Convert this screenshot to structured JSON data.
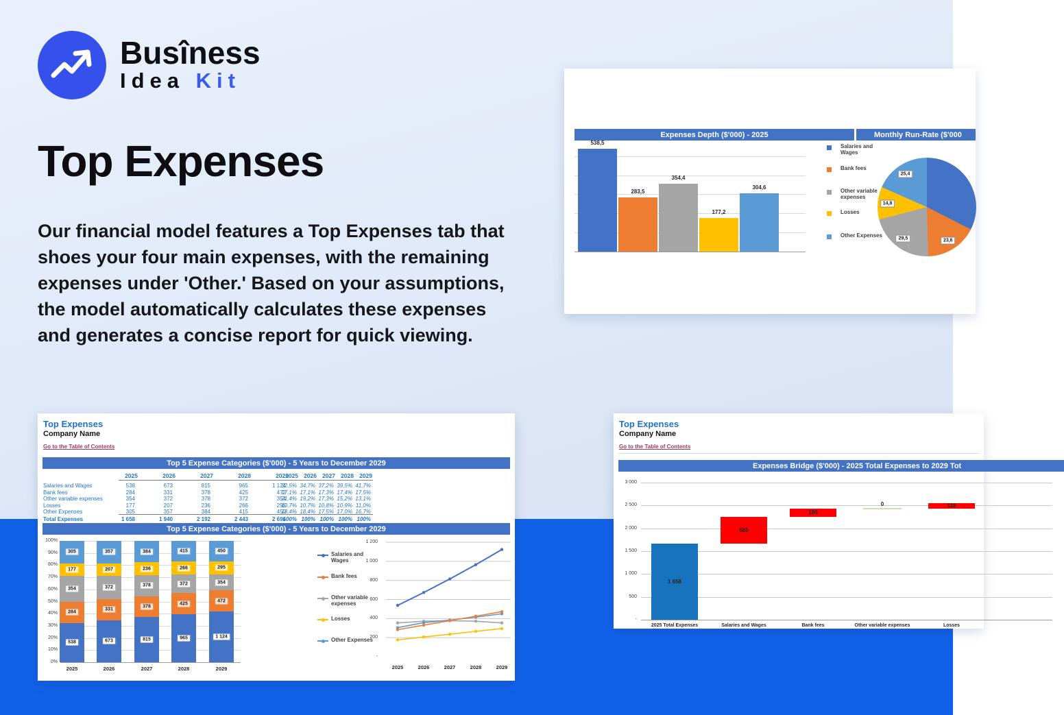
{
  "logo": {
    "brand_top": "Busîness",
    "brand_idea": "Idea",
    "brand_kit": "Kit"
  },
  "hero": {
    "title": "Top Expenses",
    "description": "Our financial model features a Top Expenses tab that shoes your four main expenses, with the remaining expenses under 'Other.' Based on your assumptions, the model automatically calculates these expenses and generates a concise report for quick viewing."
  },
  "sheet": {
    "title": "Top Expenses",
    "company": "Company Name",
    "link": "Go to the Table of Contents"
  },
  "cards": {
    "top_right": {
      "bar_header": "Expenses Depth ($'000) - 2025",
      "pie_header": "Monthly Run-Rate ($'000"
    },
    "bottom_left": {
      "section1_header": "Top 5 Expense Categories ($'000) - 5 Years to December 2029",
      "section2_header": "Top 5 Expense Categories ($'000) - 5 Years to December 2029"
    },
    "bottom_right": {
      "section_header": "Expenses Bridge ($'000) - 2025 Total Expenses to 2029 Tot"
    }
  },
  "table": {
    "years": [
      "2025",
      "2026",
      "2027",
      "2028",
      "2029"
    ],
    "rows": [
      {
        "label": "Salaries and Wages",
        "values": [
          "538",
          "673",
          "815",
          "965",
          "1 124"
        ],
        "pcts": [
          "32,5%",
          "34,7%",
          "37,2%",
          "39,5%",
          "41,7%"
        ]
      },
      {
        "label": "Bank fees",
        "values": [
          "284",
          "331",
          "378",
          "425",
          "472"
        ],
        "pcts": [
          "17,1%",
          "17,1%",
          "17,3%",
          "17,4%",
          "17,5%"
        ]
      },
      {
        "label": "Other variable expenses",
        "values": [
          "354",
          "372",
          "378",
          "372",
          "354"
        ],
        "pcts": [
          "21,4%",
          "19,2%",
          "17,3%",
          "15,2%",
          "13,1%"
        ]
      },
      {
        "label": "Losses",
        "values": [
          "177",
          "207",
          "236",
          "266",
          "295"
        ],
        "pcts": [
          "10,7%",
          "10,7%",
          "10,8%",
          "10,9%",
          "11,0%"
        ]
      },
      {
        "label": "Other Expenses",
        "values": [
          "305",
          "357",
          "384",
          "415",
          "450"
        ],
        "pcts": [
          "18,4%",
          "18,4%",
          "17,5%",
          "17,0%",
          "16,7%"
        ]
      }
    ],
    "total": {
      "label": "Total Expenses",
      "values": [
        "1 658",
        "1 940",
        "2 192",
        "2 443",
        "2 696"
      ],
      "pcts": [
        "100%",
        "100%",
        "100%",
        "100%",
        "100%"
      ]
    }
  },
  "chart_data": [
    {
      "id": "expenses_depth_bar",
      "type": "bar",
      "title": "Expenses Depth ($'000) - 2025",
      "categories": [
        "Salaries and Wages",
        "Bank fees",
        "Other variable expenses",
        "Losses",
        "Other Expenses"
      ],
      "values": [
        538.5,
        283.5,
        354.4,
        177.2,
        304.6
      ],
      "labels": [
        "538,5",
        "283,5",
        "354,4",
        "177,2",
        "304,6"
      ],
      "colors": [
        "#4472c4",
        "#ed7d31",
        "#a5a5a5",
        "#ffc000",
        "#5b9bd5"
      ],
      "ylim": [
        0,
        600
      ],
      "grid": true,
      "legend_position": "right"
    },
    {
      "id": "monthly_run_rate_pie",
      "type": "pie",
      "title": "Monthly Run-Rate ($'000",
      "slices": [
        {
          "name": "Salaries and Wages",
          "value": 44.9,
          "color": "#4472c4",
          "label": null
        },
        {
          "name": "Bank fees",
          "value": 23.6,
          "color": "#ed7d31",
          "label": "23,6"
        },
        {
          "name": "Other variable expenses",
          "value": 29.5,
          "color": "#a5a5a5",
          "label": "29,5"
        },
        {
          "name": "Losses",
          "value": 14.8,
          "color": "#ffc000",
          "label": "14,8"
        },
        {
          "name": "Other Expenses",
          "value": 25.4,
          "color": "#5b9bd5",
          "label": "25,4"
        }
      ]
    },
    {
      "id": "top5_stacked",
      "type": "bar",
      "subtype": "stacked-100",
      "title": "Top 5 Expense Categories ($'000) - 5 Years to December 2029",
      "categories": [
        "2025",
        "2026",
        "2027",
        "2028",
        "2029"
      ],
      "yticks": [
        "0%",
        "10%",
        "20%",
        "30%",
        "40%",
        "50%",
        "60%",
        "70%",
        "80%",
        "90%",
        "100%"
      ],
      "series": [
        {
          "name": "Salaries and Wages",
          "color": "#4472c4",
          "tint": "#ffffff",
          "values": [
            538,
            673,
            815,
            965,
            1124
          ],
          "labels": [
            "538",
            "673",
            "815",
            "965",
            "1 124"
          ]
        },
        {
          "name": "Bank fees",
          "color": "#ed7d31",
          "tint": "#fbe2cc",
          "values": [
            284,
            331,
            378,
            425,
            472
          ],
          "labels": [
            "284",
            "331",
            "378",
            "425",
            "472"
          ]
        },
        {
          "name": "Other variable expenses",
          "color": "#a5a5a5",
          "tint": "#f5f5f5",
          "values": [
            354,
            372,
            378,
            372,
            354
          ],
          "labels": [
            "354",
            "372",
            "378",
            "372",
            "354"
          ]
        },
        {
          "name": "Losses",
          "color": "#ffc000",
          "tint": "#fff1bf",
          "values": [
            177,
            207,
            236,
            266,
            295
          ],
          "labels": [
            "177",
            "207",
            "236",
            "266",
            "295"
          ]
        },
        {
          "name": "Other Expenses",
          "color": "#5b9bd5",
          "tint": "#eaf3fb",
          "values": [
            305,
            357,
            384,
            415,
            450
          ],
          "labels": [
            "305",
            "357",
            "384",
            "415",
            "450"
          ]
        }
      ]
    },
    {
      "id": "top5_lines",
      "type": "line",
      "x": [
        "2025",
        "2026",
        "2027",
        "2028",
        "2029"
      ],
      "ylim": [
        0,
        1200
      ],
      "yticks": [
        {
          "v": 0,
          "t": "-"
        },
        {
          "v": 200,
          "t": "200"
        },
        {
          "v": 400,
          "t": "400"
        },
        {
          "v": 600,
          "t": "600"
        },
        {
          "v": 800,
          "t": "800"
        },
        {
          "v": 1000,
          "t": "1 000"
        },
        {
          "v": 1200,
          "t": "1 200"
        }
      ],
      "series": [
        {
          "name": "Salaries and Wages",
          "color": "#4472c4",
          "values": [
            538,
            673,
            815,
            965,
            1124
          ]
        },
        {
          "name": "Bank fees",
          "color": "#ed7d31",
          "values": [
            284,
            331,
            378,
            425,
            472
          ]
        },
        {
          "name": "Other variable expenses",
          "color": "#a5a5a5",
          "values": [
            354,
            372,
            378,
            372,
            354
          ]
        },
        {
          "name": "Losses",
          "color": "#ffc000",
          "values": [
            177,
            207,
            236,
            266,
            295
          ]
        },
        {
          "name": "Other Expenses",
          "color": "#5b9bd5",
          "values": [
            305,
            357,
            384,
            415,
            450
          ]
        }
      ]
    },
    {
      "id": "expenses_bridge_waterfall",
      "type": "waterfall",
      "title": "Expenses Bridge ($'000) - 2025 Total Expenses to 2029 Tot",
      "categories": [
        "2025 Total Expenses",
        "Salaries and Wages",
        "Bank fees",
        "Other variable expenses",
        "Losses"
      ],
      "ylim": [
        0,
        3000
      ],
      "yticks": [
        {
          "v": 0,
          "t": "-"
        },
        {
          "v": 500,
          "t": "500"
        },
        {
          "v": 1000,
          "t": "1 000"
        },
        {
          "v": 1500,
          "t": "1 500"
        },
        {
          "v": 2000,
          "t": "2 000"
        },
        {
          "v": 2500,
          "t": "2 500"
        },
        {
          "v": 3000,
          "t": "3 000"
        }
      ],
      "bars": [
        {
          "label": "1 658",
          "start": 0,
          "end": 1658,
          "color": "#1673bc",
          "kind": "base"
        },
        {
          "label": "585",
          "start": 1658,
          "end": 2243,
          "color": "#ff0000",
          "kind": "delta"
        },
        {
          "label": "189",
          "start": 2243,
          "end": 2432,
          "color": "#ff0000",
          "kind": "delta"
        },
        {
          "label": "0",
          "start": 2432,
          "end": 2432,
          "color": "#c9e3ae",
          "kind": "zero"
        },
        {
          "label": "118",
          "start": 2432,
          "end": 2550,
          "color": "#ff0000",
          "kind": "delta"
        }
      ]
    }
  ],
  "colors": {
    "band_blue": "#1161e8",
    "logo_blue": "#3650eb",
    "header_bar_blue": "#4472c4",
    "sheet_title_blue": "#1b73c9",
    "link_maroon": "#9c3a60",
    "waterfall_base_blue": "#1673bc",
    "waterfall_delta_red": "#ff0000",
    "waterfall_zero_green": "#c9e3ae"
  }
}
